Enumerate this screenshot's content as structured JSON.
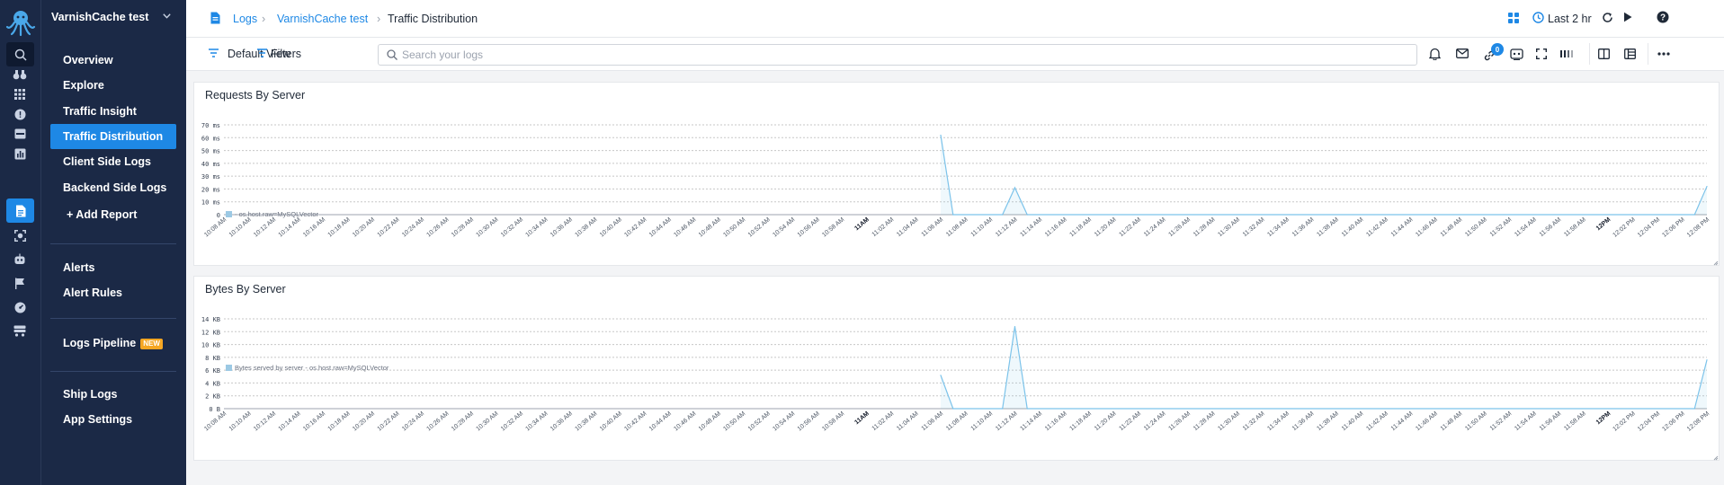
{
  "app": {
    "name": "VarnishCache test"
  },
  "menu": {
    "items": [
      {
        "label": "Overview"
      },
      {
        "label": "Explore"
      },
      {
        "label": "Traffic Insight"
      },
      {
        "label": "Traffic Distribution"
      },
      {
        "label": "Client Side Logs"
      },
      {
        "label": "Backend Side Logs"
      },
      {
        "label": "+ Add Report"
      }
    ],
    "alerts": {
      "alerts": "Alerts",
      "rules": "Alert Rules"
    },
    "pipeline": {
      "label": "Logs Pipeline",
      "badge": "NEW"
    },
    "bottom": {
      "ship": "Ship Logs",
      "settings": "App Settings"
    }
  },
  "breadcrumb": {
    "root": "Logs",
    "app": "VarnishCache test",
    "page": "Traffic Distribution"
  },
  "header": {
    "time_range": "Last 2 hr"
  },
  "toolbar": {
    "view": "Default View",
    "filters": "Filters",
    "search_placeholder": "Search your logs",
    "notification_count": "0"
  },
  "colors": {
    "accent": "#1e88e5",
    "sidebar": "#1b2946",
    "series": "#7cc3ea"
  },
  "chart_data": [
    {
      "type": "area",
      "title": "Requests By Server",
      "ylim": [
        0,
        70
      ],
      "yticks": [
        "70 ms",
        "60 ms",
        "50 ms",
        "40 ms",
        "30 ms",
        "20 ms",
        "10 ms",
        "0"
      ],
      "ytick_values": [
        70,
        60,
        50,
        40,
        30,
        20,
        10,
        0
      ],
      "xticks": [
        "10:08 AM",
        "10:10 AM",
        "10:12 AM",
        "10:14 AM",
        "10:16 AM",
        "10:18 AM",
        "10:20 AM",
        "10:22 AM",
        "10:24 AM",
        "10:26 AM",
        "10:28 AM",
        "10:30 AM",
        "10:32 AM",
        "10:34 AM",
        "10:36 AM",
        "10:38 AM",
        "10:40 AM",
        "10:42 AM",
        "10:44 AM",
        "10:46 AM",
        "10:48 AM",
        "10:50 AM",
        "10:52 AM",
        "10:54 AM",
        "10:56 AM",
        "10:58 AM",
        "11AM",
        "11:02 AM",
        "11:04 AM",
        "11:06 AM",
        "11:08 AM",
        "11:10 AM",
        "11:12 AM",
        "11:14 AM",
        "11:16 AM",
        "11:18 AM",
        "11:20 AM",
        "11:22 AM",
        "11:24 AM",
        "11:26 AM",
        "11:28 AM",
        "11:30 AM",
        "11:32 AM",
        "11:34 AM",
        "11:36 AM",
        "11:38 AM",
        "11:40 AM",
        "11:42 AM",
        "11:44 AM",
        "11:46 AM",
        "11:48 AM",
        "11:50 AM",
        "11:52 AM",
        "11:54 AM",
        "11:56 AM",
        "11:58 AM",
        "12PM",
        "12:02 PM",
        "12:04 PM",
        "12:06 PM",
        "12:08 PM"
      ],
      "bold_ticks": [
        "11AM",
        "12PM"
      ],
      "series": [
        {
          "name": "- os.host.raw=MySQLVector",
          "points": [
            [
              "11:06 AM",
              62
            ],
            [
              "11:07 AM",
              0
            ],
            [
              "11:11 AM",
              0
            ],
            [
              "11:12 AM",
              21
            ],
            [
              "11:13 AM",
              0
            ],
            [
              "12:07 PM",
              0
            ],
            [
              "12:08 PM",
              22
            ]
          ]
        }
      ],
      "grid": true,
      "legend": "bottom-left"
    },
    {
      "type": "area",
      "title": "Bytes By Server",
      "ylim": [
        0,
        14
      ],
      "yticks": [
        "14 KB",
        "12 KB",
        "10 KB",
        "8 KB",
        "6 KB",
        "4 KB",
        "2 KB",
        "0 B"
      ],
      "ytick_values": [
        14,
        12,
        10,
        8,
        6,
        4,
        2,
        0
      ],
      "xticks": [
        "10:08 AM",
        "10:10 AM",
        "10:12 AM",
        "10:14 AM",
        "10:16 AM",
        "10:18 AM",
        "10:20 AM",
        "10:22 AM",
        "10:24 AM",
        "10:26 AM",
        "10:28 AM",
        "10:30 AM",
        "10:32 AM",
        "10:34 AM",
        "10:36 AM",
        "10:38 AM",
        "10:40 AM",
        "10:42 AM",
        "10:44 AM",
        "10:46 AM",
        "10:48 AM",
        "10:50 AM",
        "10:52 AM",
        "10:54 AM",
        "10:56 AM",
        "10:58 AM",
        "11AM",
        "11:02 AM",
        "11:04 AM",
        "11:06 AM",
        "11:08 AM",
        "11:10 AM",
        "11:12 AM",
        "11:14 AM",
        "11:16 AM",
        "11:18 AM",
        "11:20 AM",
        "11:22 AM",
        "11:24 AM",
        "11:26 AM",
        "11:28 AM",
        "11:30 AM",
        "11:32 AM",
        "11:34 AM",
        "11:36 AM",
        "11:38 AM",
        "11:40 AM",
        "11:42 AM",
        "11:44 AM",
        "11:46 AM",
        "11:48 AM",
        "11:50 AM",
        "11:52 AM",
        "11:54 AM",
        "11:56 AM",
        "11:58 AM",
        "12PM",
        "12:02 PM",
        "12:04 PM",
        "12:06 PM",
        "12:08 PM"
      ],
      "bold_ticks": [
        "11AM",
        "12PM"
      ],
      "series": [
        {
          "name": "Bytes served by server - os.host.raw=MySQLVector",
          "points": [
            [
              "11:06 AM",
              5.2
            ],
            [
              "11:07 AM",
              0
            ],
            [
              "11:11 AM",
              0
            ],
            [
              "11:12 AM",
              12.8
            ],
            [
              "11:13 AM",
              0
            ],
            [
              "12:07 PM",
              0
            ],
            [
              "12:08 PM",
              7.6
            ]
          ]
        }
      ],
      "grid": true,
      "legend": "bottom-left"
    }
  ]
}
